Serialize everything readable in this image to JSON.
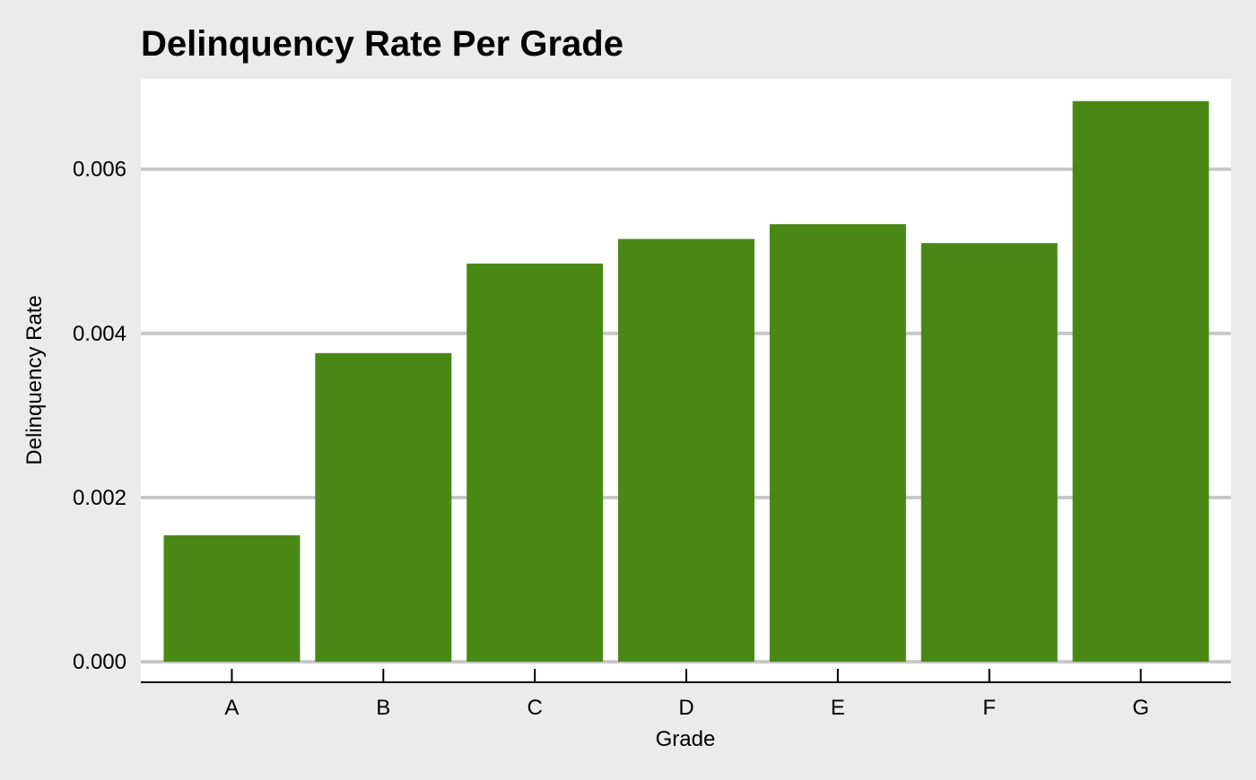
{
  "chart_data": {
    "type": "bar",
    "title": "Delinquency Rate Per Grade",
    "xlabel": "Grade",
    "ylabel": "Delinquency Rate",
    "categories": [
      "A",
      "B",
      "C",
      "D",
      "E",
      "F",
      "G"
    ],
    "values": [
      0.00154,
      0.00376,
      0.00485,
      0.00515,
      0.00533,
      0.0051,
      0.00683
    ],
    "ylim": [
      -0.00025,
      0.0071
    ],
    "yticks": [
      0,
      0.002,
      0.004,
      0.006
    ],
    "ytick_labels": [
      "0.000",
      "0.002",
      "0.004",
      "0.006"
    ],
    "grid": "horizontal",
    "colors": {
      "bar": "#4a8816",
      "background": "#ebebeb",
      "panel": "#ffffff",
      "gridline": "#c8c8c8",
      "text": "#000000"
    }
  }
}
